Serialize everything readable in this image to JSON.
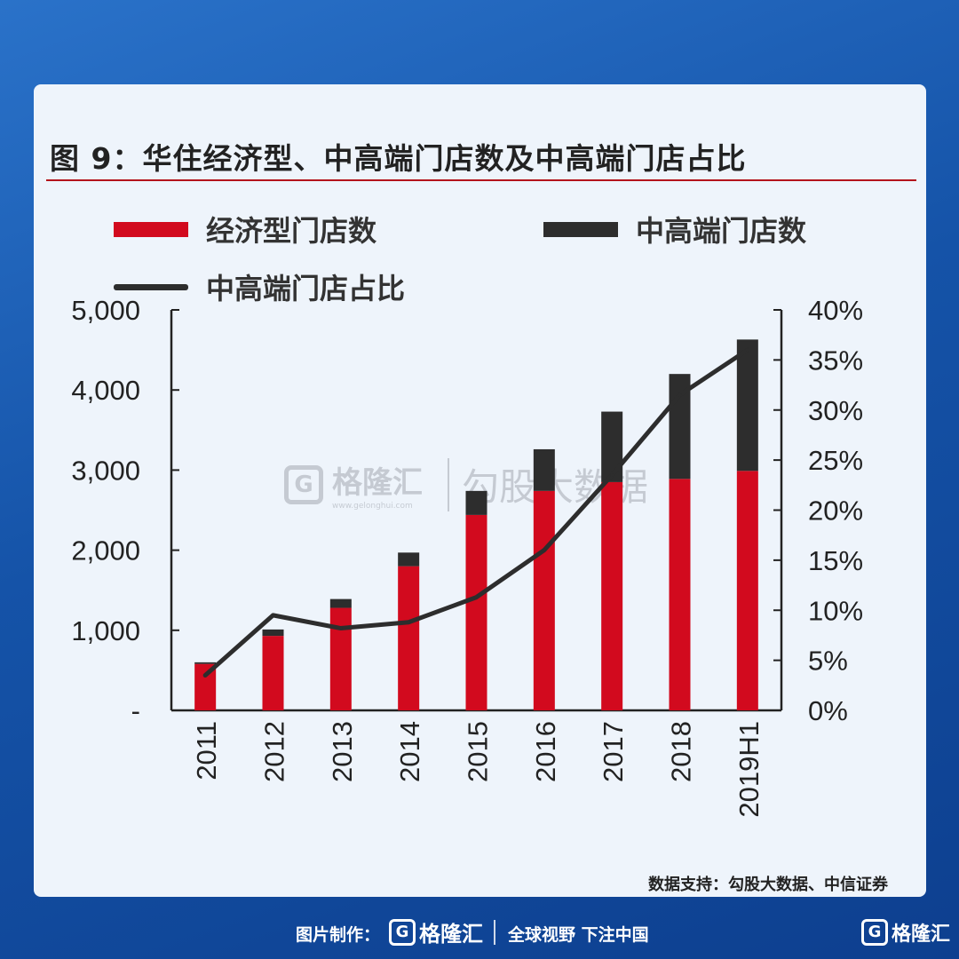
{
  "title": "图 9：华住经济型、中高端门店数及中高端门店占比",
  "legend": {
    "economy": "经济型门店数",
    "midhigh": "中高端门店数",
    "ratio": "中高端门店占比"
  },
  "colors": {
    "economy": "#d20a1e",
    "midhigh": "#2d2d2d",
    "line": "#2d2d2d",
    "accent": "#b4141c"
  },
  "chart_data": {
    "type": "bar",
    "stacked": true,
    "categories": [
      "2011",
      "2012",
      "2013",
      "2014",
      "2015",
      "2016",
      "2017",
      "2018",
      "2019H1"
    ],
    "series": [
      {
        "name": "经济型门店数",
        "axis": "left",
        "values": [
          580,
          930,
          1280,
          1800,
          2440,
          2740,
          2850,
          2890,
          2990
        ]
      },
      {
        "name": "中高端门店数",
        "axis": "left",
        "values": [
          20,
          80,
          110,
          170,
          300,
          520,
          880,
          1310,
          1640
        ]
      },
      {
        "name": "中高端门店占比",
        "axis": "right",
        "type": "line",
        "values": [
          3.5,
          9.5,
          8.2,
          8.8,
          11.3,
          16.0,
          23.5,
          31.5,
          36.0
        ]
      }
    ],
    "y_left": {
      "min": 0,
      "max": 5000,
      "ticks": [
        "-",
        "1,000",
        "2,000",
        "3,000",
        "4,000",
        "5,000"
      ]
    },
    "y_right": {
      "min": 0,
      "max": 40,
      "ticks": [
        "0%",
        "5%",
        "10%",
        "15%",
        "20%",
        "25%",
        "30%",
        "35%",
        "40%"
      ]
    },
    "xlabel": "",
    "ylabel": ""
  },
  "watermark": {
    "brand": "格隆汇",
    "site": "www.gelonghui.com",
    "text": "勾股大数据",
    "logo": "G"
  },
  "source": "数据支持：勾股大数据、中信证券",
  "footer": {
    "made_by": "图片制作：",
    "brand": "格隆汇",
    "slogan": "全球视野 下注中国",
    "corner_brand": "格隆汇",
    "logo": "G"
  }
}
